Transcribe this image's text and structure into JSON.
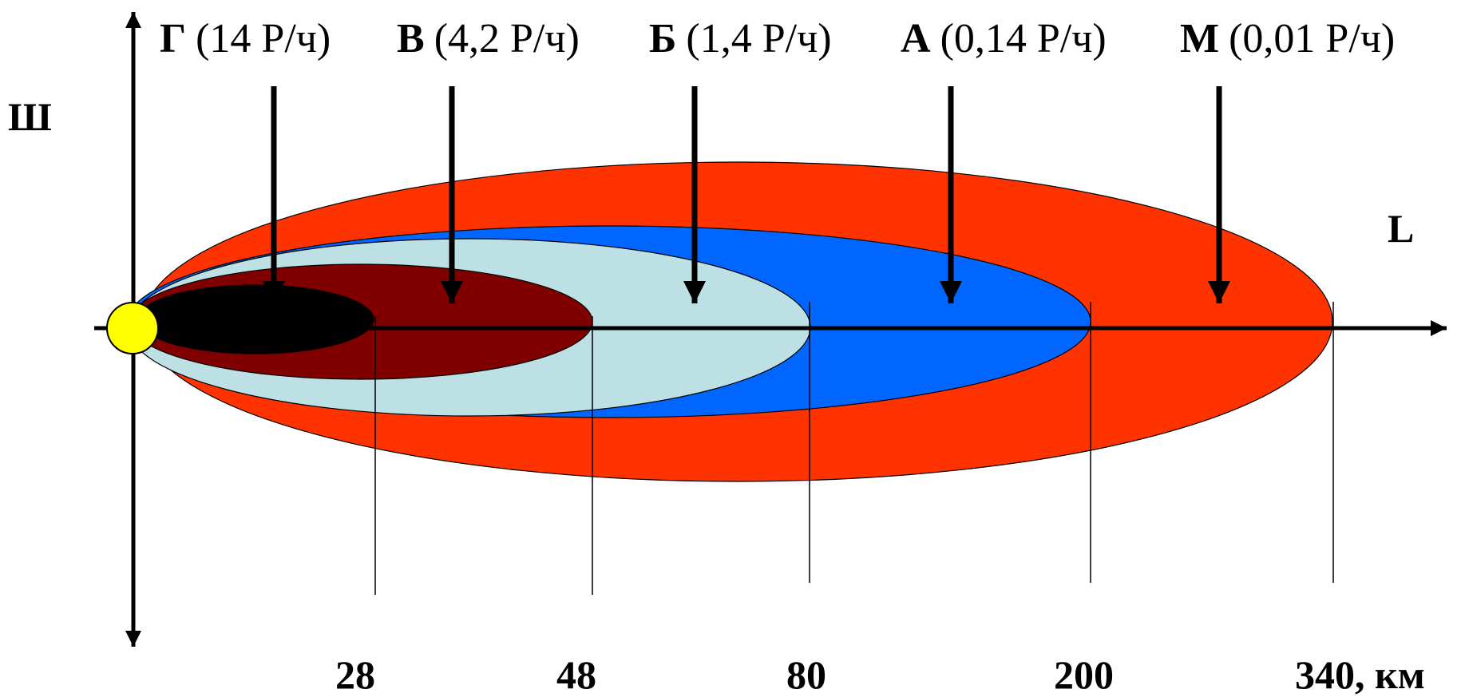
{
  "colors": {
    "zone_m": "#FF3300",
    "zone_a": "#0066FF",
    "zone_b": "#BCE0E4",
    "zone_v": "#800000",
    "zone_g": "#000000",
    "source": "#FFFF00",
    "axis": "#000000"
  },
  "axes": {
    "y_label": "Ш",
    "x_label": "L"
  },
  "zones": [
    {
      "letter": "Г",
      "rate": "(14 Р/ч)"
    },
    {
      "letter": "В",
      "rate": "(4,2 Р/ч)"
    },
    {
      "letter": "Б",
      "rate": "(1,4 Р/ч)"
    },
    {
      "letter": "А",
      "rate": "(0,14 Р/ч)"
    },
    {
      "letter": "М",
      "rate": "(0,01 Р/ч)"
    }
  ],
  "distance_ticks": [
    "28",
    "48",
    "80",
    "200",
    "340, км"
  ]
}
